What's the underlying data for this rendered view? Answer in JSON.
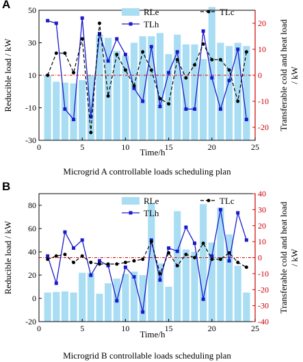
{
  "chart_data": [
    {
      "type": "bar+line",
      "panel_label": "A",
      "title": "",
      "caption": "Microgrid A controllable loads scheduling plan",
      "xlabel": "Time/h",
      "ylabel_left": "Reducible load / kW",
      "ylabel_right": "Transferable cold and heat load / kW",
      "xlim": [
        0,
        25
      ],
      "ylim_left": [
        -30,
        50
      ],
      "ylim_right": [
        -25,
        25
      ],
      "xticks": [
        "0",
        "5",
        "10",
        "15",
        "20",
        "25"
      ],
      "yticks_left": [
        "-30",
        "-10",
        "10",
        "30",
        "50"
      ],
      "yticks_right": [
        "-20",
        "-10",
        "0",
        "10",
        "20"
      ],
      "x": [
        1,
        2,
        3,
        4,
        5,
        6,
        7,
        8,
        9,
        10,
        11,
        12,
        13,
        14,
        15,
        16,
        17,
        18,
        19,
        20,
        21,
        22,
        23,
        24
      ],
      "legend": [
        "RLe",
        "TLh",
        "TLc"
      ],
      "series": [
        {
          "name": "RLe",
          "axis": "left",
          "style": "bar",
          "color": "#a8ddf3",
          "values": [
            10,
            6,
            5.5,
            5,
            7,
            10,
            35,
            33,
            25,
            22,
            30,
            34,
            34,
            36,
            23,
            35,
            29,
            29,
            20,
            52,
            30,
            28,
            30,
            28
          ]
        },
        {
          "name": "TLh",
          "axis": "right",
          "style": "line-square",
          "color": "#1a1acc",
          "values": [
            21,
            20,
            -13,
            -17,
            22,
            -16,
            16,
            5.5,
            14,
            8,
            -5,
            -10,
            11,
            -12,
            1,
            9,
            -13,
            -13,
            17,
            -1,
            -13,
            -2,
            10,
            -17
          ]
        },
        {
          "name": "TLc",
          "axis": "right",
          "style": "dash-dot",
          "color": "#000000",
          "values": [
            0,
            8.5,
            8.5,
            1,
            14,
            -22,
            20,
            -8,
            8,
            2,
            -4,
            9,
            2,
            -9,
            -11,
            6,
            -1,
            4,
            12,
            6,
            6,
            2,
            -10,
            9
          ]
        }
      ],
      "ref_line": {
        "axis": "right",
        "value": 0,
        "color": "#cc0000"
      }
    },
    {
      "type": "bar+line",
      "panel_label": "B",
      "title": "",
      "caption": "Microgrid B controllable loads scheduling plan",
      "xlabel": "Time/h",
      "ylabel_left": "Reducible load / kW",
      "ylabel_right": "Transferable cold and heat load / kW",
      "xlim": [
        0,
        25
      ],
      "ylim_left": [
        -20,
        90
      ],
      "ylim_right": [
        -40,
        40
      ],
      "xticks": [
        "0",
        "5",
        "10",
        "15",
        "20",
        "25"
      ],
      "yticks_left": [
        "-20",
        "0",
        "20",
        "40",
        "60",
        "80"
      ],
      "yticks_right": [
        "-40",
        "-30",
        "-20",
        "-10",
        "0",
        "10",
        "20",
        "30",
        "40"
      ],
      "x": [
        1,
        2,
        3,
        4,
        5,
        6,
        7,
        8,
        9,
        10,
        11,
        12,
        13,
        14,
        15,
        16,
        17,
        18,
        19,
        20,
        21,
        22,
        23,
        24
      ],
      "legend": [
        "RLe",
        "TLh",
        "TLc"
      ],
      "series": [
        {
          "name": "RLe",
          "axis": "left",
          "style": "bar",
          "color": "#a8ddf3",
          "values": [
            5,
            5.5,
            6,
            5,
            22,
            22,
            4,
            13,
            17,
            21,
            23,
            20,
            82,
            30,
            10,
            75,
            42,
            40,
            81,
            48,
            78,
            55,
            28,
            5
          ]
        },
        {
          "name": "TLh",
          "axis": "right",
          "style": "line-square",
          "color": "#1a1acc",
          "values": [
            1,
            -16,
            16,
            6,
            11,
            -11,
            -2,
            -5,
            -27,
            -6,
            -12,
            -34,
            11,
            -14,
            6,
            4,
            19,
            9,
            -26,
            1,
            30,
            -2,
            28,
            11
          ]
        },
        {
          "name": "TLc",
          "axis": "right",
          "style": "dash-dot",
          "color": "#000000",
          "values": [
            -1,
            1,
            2,
            -3,
            1,
            -3,
            -4,
            -4,
            -4,
            -3,
            -2,
            -1,
            10,
            -10,
            3,
            -5,
            2,
            0,
            9,
            -1,
            -1,
            3,
            -3,
            -6
          ]
        }
      ],
      "ref_line": {
        "axis": "right",
        "value": 0,
        "color": "#cc0000"
      }
    }
  ]
}
